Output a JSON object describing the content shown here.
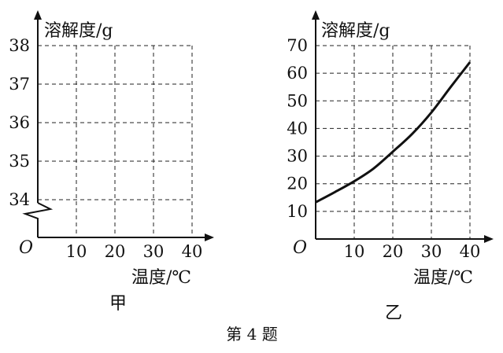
{
  "caption": "第 4 题",
  "chart_data": [
    {
      "type": "line",
      "panel_label": "甲",
      "ylabel": "溶解度/g",
      "xlabel": "温度/℃",
      "origin_label": "O",
      "x_ticks": [
        10,
        20,
        30,
        40
      ],
      "y_ticks": [
        34,
        35,
        36,
        37,
        38
      ],
      "xlim": [
        0,
        40
      ],
      "ylim": [
        33,
        38
      ],
      "y_axis_break": true,
      "grid": true,
      "series": []
    },
    {
      "type": "line",
      "panel_label": "乙",
      "ylabel": "溶解度/g",
      "xlabel": "温度/℃",
      "origin_label": "O",
      "x_ticks": [
        10,
        20,
        30,
        40
      ],
      "y_ticks": [
        10,
        20,
        30,
        40,
        50,
        60,
        70
      ],
      "xlim": [
        0,
        40
      ],
      "ylim": [
        0,
        70
      ],
      "y_axis_break": false,
      "grid": true,
      "series": [
        {
          "x": [
            0,
            5,
            10,
            15,
            20,
            25,
            30,
            35,
            40
          ],
          "values": [
            13.3,
            17,
            20.9,
            25.5,
            31.6,
            38,
            45.8,
            55,
            64
          ]
        }
      ]
    }
  ]
}
